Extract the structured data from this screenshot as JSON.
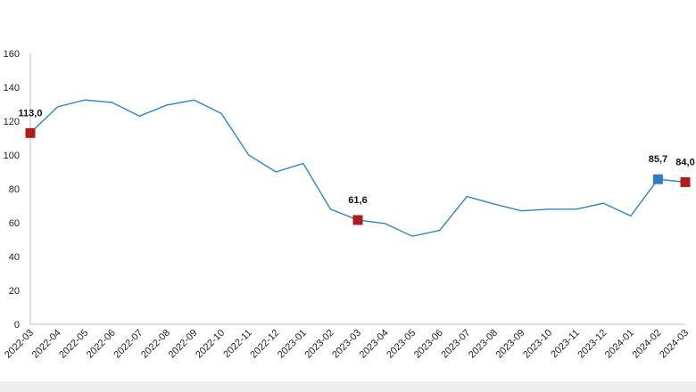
{
  "chart_data": {
    "type": "line",
    "title": "",
    "xlabel": "",
    "ylabel": "",
    "ylim": [
      0,
      160
    ],
    "yticks": [
      0,
      20,
      40,
      60,
      80,
      100,
      120,
      140,
      160
    ],
    "grid": false,
    "categories": [
      "2022-03",
      "2022-04",
      "2022-05",
      "2022-06",
      "2022-07",
      "2022-08",
      "2022-09",
      "2022-10",
      "2022-11",
      "2022-12",
      "2023-01",
      "2023-02",
      "2023-03",
      "2023-04",
      "2023-05",
      "2023-06",
      "2023-07",
      "2023-08",
      "2023-09",
      "2023-10",
      "2023-11",
      "2023-12",
      "2024-01",
      "2024-02",
      "2024-03"
    ],
    "series": [
      {
        "values": [
          113.0,
          128.5,
          132.5,
          131.0,
          123.0,
          129.5,
          132.5,
          124.5,
          100.0,
          90.0,
          95.0,
          68.0,
          61.6,
          59.5,
          52.0,
          55.5,
          75.5,
          71.0,
          67.0,
          68.0,
          68.0,
          71.5,
          64.0,
          85.7,
          84.0
        ],
        "color": "#2e86c1"
      }
    ],
    "highlighted_points": [
      {
        "category": "2022-03",
        "value": 113.0,
        "label": "113,0",
        "color": "#b01c1c"
      },
      {
        "category": "2023-03",
        "value": 61.6,
        "label": "61,6",
        "color": "#b01c1c"
      },
      {
        "category": "2024-02",
        "value": 85.7,
        "label": "85,7",
        "color": "#2e7fc1"
      },
      {
        "category": "2024-03",
        "value": 84.0,
        "label": "84,0",
        "color": "#b01c1c"
      }
    ],
    "colors": {
      "axis": "#bdbdbd",
      "text": "#222222",
      "footer": "#efefef"
    }
  }
}
